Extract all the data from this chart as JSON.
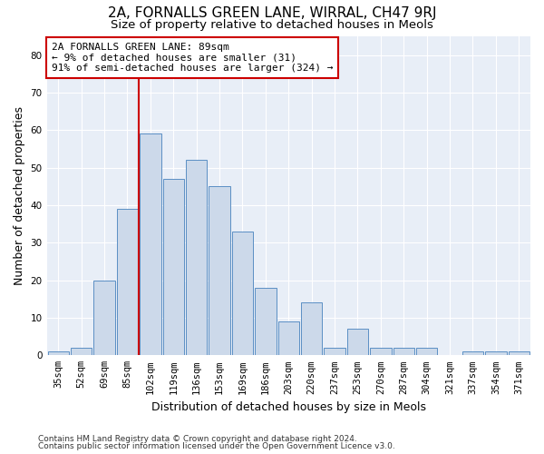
{
  "title": "2A, FORNALLS GREEN LANE, WIRRAL, CH47 9RJ",
  "subtitle": "Size of property relative to detached houses in Meols",
  "xlabel": "Distribution of detached houses by size in Meols",
  "ylabel": "Number of detached properties",
  "bins": [
    "35sqm",
    "52sqm",
    "69sqm",
    "85sqm",
    "102sqm",
    "119sqm",
    "136sqm",
    "153sqm",
    "169sqm",
    "186sqm",
    "203sqm",
    "220sqm",
    "237sqm",
    "253sqm",
    "270sqm",
    "287sqm",
    "304sqm",
    "321sqm",
    "337sqm",
    "354sqm",
    "371sqm"
  ],
  "values": [
    1,
    2,
    20,
    39,
    59,
    47,
    52,
    45,
    33,
    18,
    9,
    14,
    2,
    7,
    2,
    2,
    2,
    0,
    1,
    1,
    1
  ],
  "bar_color": "#ccd9ea",
  "bar_edge_color": "#5b8fc4",
  "annotation_box_text": "2A FORNALLS GREEN LANE: 89sqm\n← 9% of detached houses are smaller (31)\n91% of semi-detached houses are larger (324) →",
  "annotation_box_color": "#ffffff",
  "annotation_box_edge_color": "#cc0000",
  "red_line_color": "#cc0000",
  "ylim": [
    0,
    85
  ],
  "yticks": [
    0,
    10,
    20,
    30,
    40,
    50,
    60,
    70,
    80
  ],
  "footer_line1": "Contains HM Land Registry data © Crown copyright and database right 2024.",
  "footer_line2": "Contains public sector information licensed under the Open Government Licence v3.0.",
  "background_color": "#ffffff",
  "plot_bg_color": "#e8eef7",
  "grid_color": "#ffffff",
  "title_fontsize": 11,
  "subtitle_fontsize": 9.5,
  "axis_label_fontsize": 9,
  "tick_fontsize": 7.5,
  "annotation_fontsize": 8,
  "footer_fontsize": 6.5
}
